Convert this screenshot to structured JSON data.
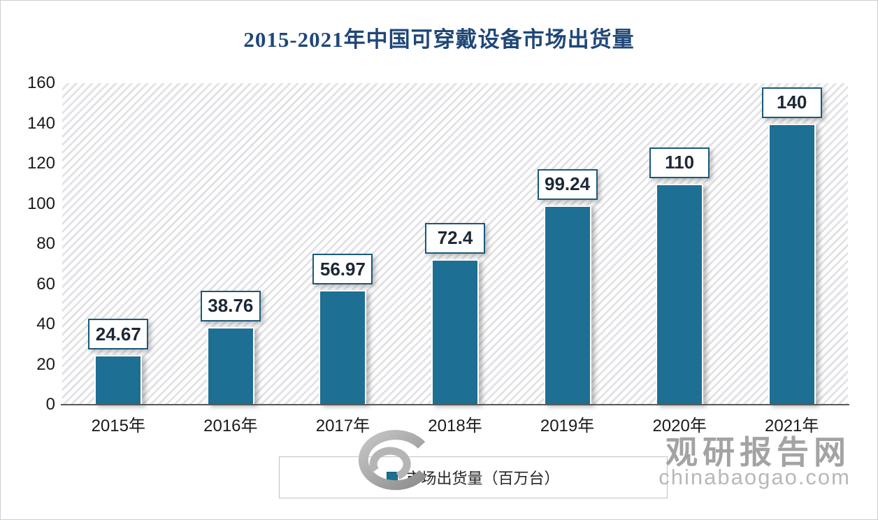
{
  "page": {
    "background": "#ffffff",
    "border_color": "#cfcfd3"
  },
  "chart_data": {
    "type": "bar",
    "title": "2015-2021年中国可穿戴设备市场出货量",
    "categories": [
      "2015年",
      "2016年",
      "2017年",
      "2018年",
      "2019年",
      "2020年",
      "2021年"
    ],
    "values": [
      24.67,
      38.76,
      56.97,
      72.4,
      99.24,
      110,
      140
    ],
    "value_labels": [
      "24.67",
      "38.76",
      "56.97",
      "72.4",
      "99.24",
      "110",
      "140"
    ],
    "xlabel": "",
    "ylabel": "",
    "ylim": [
      0,
      160
    ],
    "yticks": [
      0,
      20,
      40,
      60,
      80,
      100,
      120,
      140,
      160
    ],
    "grid": false,
    "plot_background": "diagonal-hatch",
    "legend_position": "bottom",
    "legend": [
      "市场出货量（百万台）"
    ],
    "bar_color": "#1d6f93",
    "value_box_border_color": "#1a5a7a",
    "title_color": "#1f4777",
    "axis_line_color": "#595959",
    "hatch_color": "#e3e3e7"
  },
  "legend": {
    "label": "市场出货量（百万台）"
  },
  "watermark": {
    "site_name": "观研报告网",
    "site_url": "chinabaogao.com",
    "logo": "swirl-logo",
    "name_color": "#a3a3a3",
    "url_color": "#b8b8b8"
  }
}
